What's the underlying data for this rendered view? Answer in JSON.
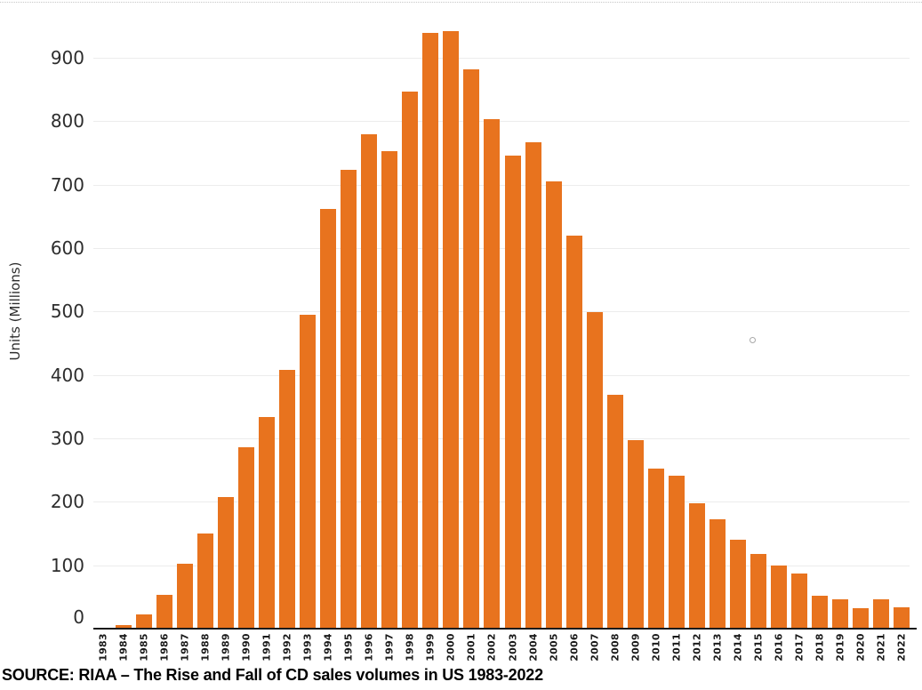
{
  "source_caption": "SOURCE: RIAA – The Rise and Fall of CD sales volumes in US 1983-2022",
  "y_axis": {
    "title": "Units (Millions)",
    "ticks": [
      0,
      100,
      200,
      300,
      400,
      500,
      600,
      700,
      800,
      900
    ]
  },
  "colors": {
    "bar": "#E8731E",
    "axis": "#1a1a1a",
    "grid": "#ececec",
    "tick_text": "#2d2d2d"
  },
  "chart_data": {
    "type": "bar",
    "title": "",
    "xlabel": "",
    "ylabel": "Units (Millions)",
    "ylim": [
      0,
      970
    ],
    "grid": true,
    "legend": "none",
    "bar_color": "#E8731E",
    "categories": [
      "1983",
      "1984",
      "1985",
      "1986",
      "1987",
      "1988",
      "1989",
      "1990",
      "1991",
      "1992",
      "1993",
      "1994",
      "1995",
      "1996",
      "1997",
      "1998",
      "1999",
      "2000",
      "2001",
      "2002",
      "2003",
      "2004",
      "2005",
      "2006",
      "2007",
      "2008",
      "2009",
      "2010",
      "2011",
      "2012",
      "2013",
      "2014",
      "2015",
      "2016",
      "2017",
      "2018",
      "2019",
      "2020",
      "2021",
      "2022"
    ],
    "values": [
      0.8,
      5.8,
      22.6,
      53.0,
      102.1,
      149.7,
      207.2,
      286.5,
      333.3,
      407.5,
      495.4,
      662.1,
      722.9,
      778.9,
      753.1,
      847.0,
      938.9,
      942.5,
      881.9,
      803.3,
      746.0,
      767.0,
      705.4,
      619.7,
      499.7,
      368.4,
      296.6,
      253.0,
      240.8,
      198.2,
      172.2,
      140.8,
      117.3,
      99.4,
      87.6,
      52.0,
      46.5,
      31.6,
      46.6,
      33.4
    ]
  }
}
